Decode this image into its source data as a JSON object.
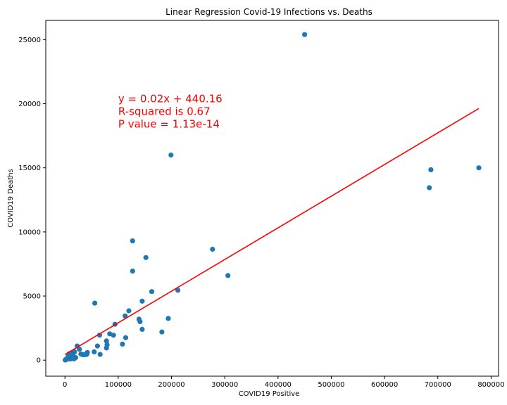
{
  "chart_data": {
    "type": "scatter",
    "title": "Linear Regression Covid-19 Infections vs. Deaths",
    "xlabel": "COVID19 Positive",
    "ylabel": "COVID19 Deaths",
    "xlim": [
      -36000,
      814000
    ],
    "ylim": [
      -1250,
      26500
    ],
    "xticks": [
      0,
      100000,
      200000,
      300000,
      400000,
      500000,
      600000,
      700000,
      800000
    ],
    "yticks": [
      0,
      5000,
      10000,
      15000,
      20000,
      25000
    ],
    "grid": false,
    "point_color": "#1f77b4",
    "line_color": "#ff0000",
    "points": [
      [
        450000,
        25400
      ],
      [
        199000,
        16000
      ],
      [
        777000,
        15000
      ],
      [
        687000,
        14850
      ],
      [
        684000,
        13450
      ],
      [
        127000,
        9300
      ],
      [
        152000,
        8000
      ],
      [
        277000,
        8650
      ],
      [
        127000,
        6950
      ],
      [
        306000,
        6600
      ],
      [
        212000,
        5450
      ],
      [
        163000,
        5350
      ],
      [
        56000,
        4450
      ],
      [
        145000,
        4600
      ],
      [
        120000,
        3850
      ],
      [
        113000,
        3450
      ],
      [
        194000,
        3250
      ],
      [
        139000,
        3200
      ],
      [
        141000,
        3000
      ],
      [
        94000,
        2800
      ],
      [
        145000,
        2400
      ],
      [
        182000,
        2200
      ],
      [
        84000,
        2050
      ],
      [
        91000,
        1950
      ],
      [
        65000,
        1950
      ],
      [
        114000,
        1750
      ],
      [
        78000,
        1500
      ],
      [
        79000,
        1200
      ],
      [
        108000,
        1250
      ],
      [
        61000,
        1100
      ],
      [
        78000,
        950
      ],
      [
        23000,
        1100
      ],
      [
        27000,
        850
      ],
      [
        55000,
        650
      ],
      [
        66000,
        450
      ],
      [
        42000,
        600
      ],
      [
        41000,
        450
      ],
      [
        30000,
        480
      ],
      [
        33000,
        430
      ],
      [
        37000,
        420
      ],
      [
        18000,
        650
      ],
      [
        14000,
        600
      ],
      [
        12000,
        550
      ],
      [
        8000,
        500
      ],
      [
        16000,
        300
      ],
      [
        19000,
        180
      ],
      [
        11000,
        150
      ],
      [
        6000,
        300
      ],
      [
        4000,
        120
      ],
      [
        2000,
        60
      ],
      [
        1000,
        30
      ],
      [
        500,
        10
      ],
      [
        1500,
        20
      ],
      [
        3000,
        80
      ],
      [
        5000,
        100
      ],
      [
        9000,
        200
      ],
      [
        7000,
        250
      ],
      [
        13000,
        400
      ],
      [
        15000,
        150
      ],
      [
        10000,
        90
      ],
      [
        20000,
        200
      ],
      [
        17000,
        100
      ]
    ],
    "regression_line": {
      "x": [
        0,
        777000
      ],
      "y": [
        440.16,
        19630
      ]
    },
    "annotation": {
      "lines": [
        "y = 0.02x + 440.16",
        "R-squared is 0.67",
        "P value = 1.13e-14"
      ],
      "x": 100000,
      "y": 20100
    }
  }
}
